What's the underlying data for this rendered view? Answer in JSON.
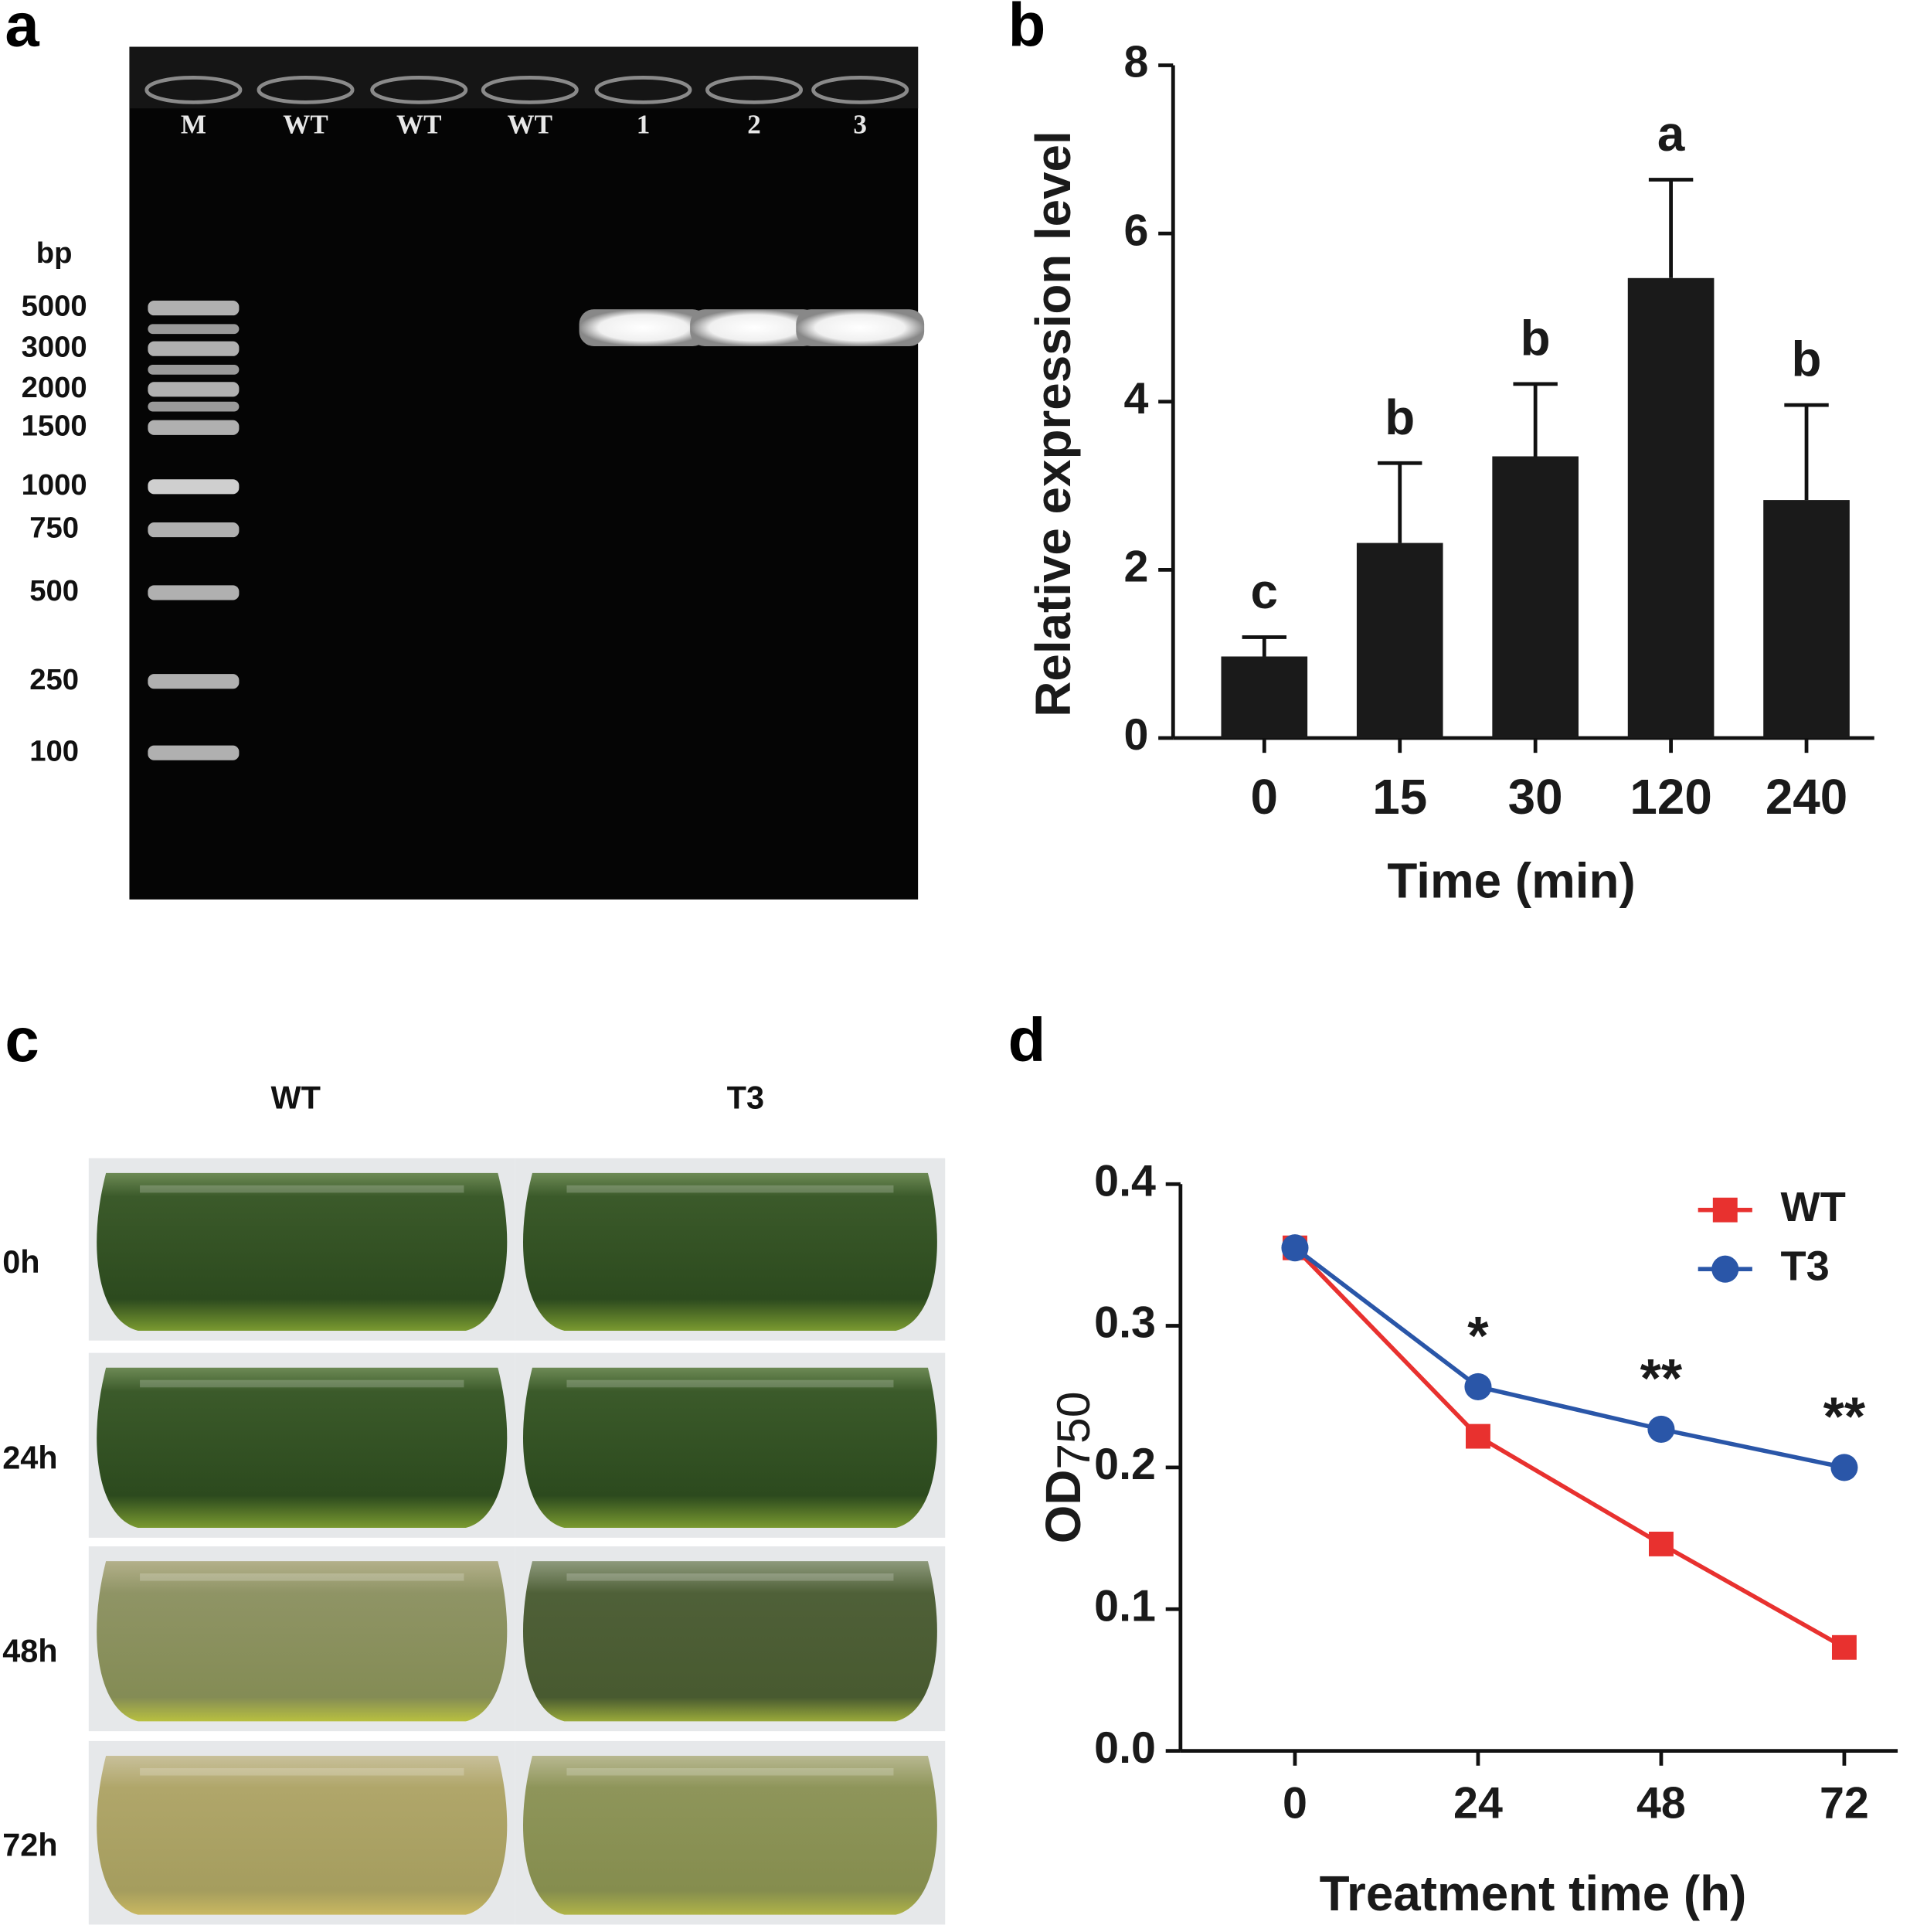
{
  "panel_labels": [
    "a",
    "b",
    "c",
    "d"
  ],
  "gel": {
    "lanes": [
      "M",
      "WT",
      "WT",
      "WT",
      "1",
      "2",
      "3"
    ],
    "unit": "bp",
    "markers": [
      "5000",
      "3000",
      "2000",
      "1500",
      "1000",
      "750",
      "500",
      "250",
      "100"
    ]
  },
  "photos": {
    "columns": [
      "WT",
      "T3"
    ],
    "rows": [
      "0h",
      "24h",
      "48h",
      "72h"
    ]
  },
  "chart_data": [
    {
      "type": "bar",
      "categories": [
        "0",
        "15",
        "30",
        "120",
        "240"
      ],
      "values": [
        0.97,
        2.32,
        3.35,
        5.47,
        2.83
      ],
      "errors": [
        0.23,
        0.95,
        0.86,
        1.17,
        1.13
      ],
      "annotations": [
        "c",
        "b",
        "b",
        "a",
        "b"
      ],
      "color": "#1a1a1a",
      "ylim": [
        0,
        8
      ],
      "yticks": [
        0,
        2,
        4,
        6,
        8
      ],
      "xlabel": "Time (min)",
      "ylabel": "Relative expression level"
    },
    {
      "type": "line",
      "x": [
        0,
        24,
        48,
        72
      ],
      "xlim": [
        -15,
        79
      ],
      "xticks": [
        0,
        24,
        48,
        72
      ],
      "ylim": [
        0,
        0.4
      ],
      "yticks": [
        {
          "value": 0,
          "label": "0.0"
        },
        0.1,
        0.2,
        0.3,
        0.4
      ],
      "series": [
        {
          "name": "WT",
          "color": "#e8312f",
          "marker": "square",
          "values": [
            0.355,
            0.222,
            0.146,
            0.073
          ]
        },
        {
          "name": "T3",
          "color": "#2a56a8",
          "marker": "circle",
          "values": [
            0.355,
            0.257,
            0.227,
            0.2
          ]
        }
      ],
      "annotations": [
        null,
        "*",
        "**",
        "**"
      ],
      "xlabel": "Treatment time (h)",
      "ylabel": "OD",
      "ylabel_subscript": "750",
      "legend": "upper right"
    }
  ]
}
